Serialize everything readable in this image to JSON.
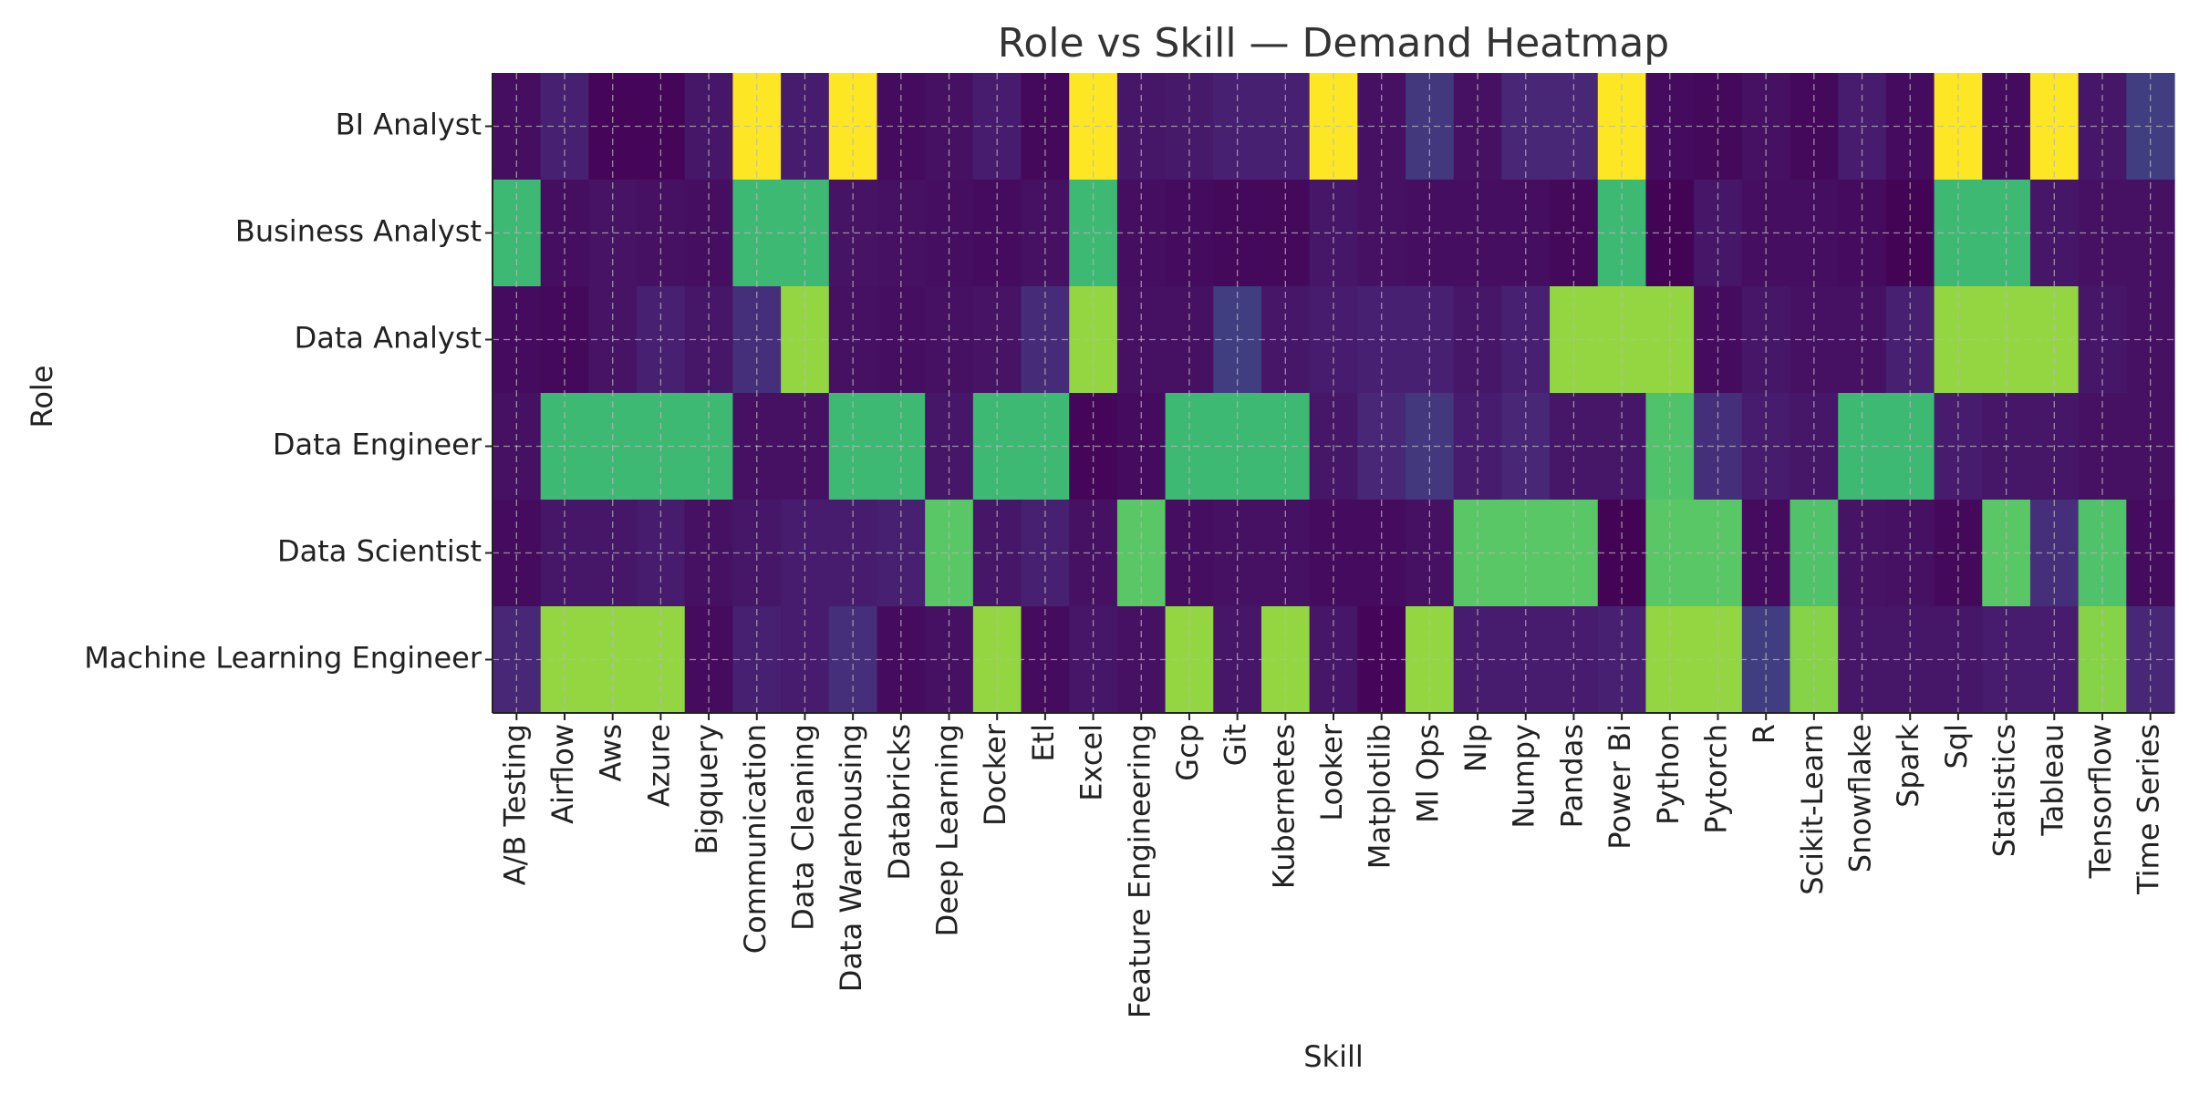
{
  "chart_data": {
    "type": "heatmap",
    "title": "Role vs Skill — Demand Heatmap",
    "xlabel": "Skill",
    "ylabel": "Role",
    "grid": true,
    "colormap": "viridis",
    "value_range": [
      0,
      1
    ],
    "rows": [
      "BI Analyst",
      "Business Analyst",
      "Data Analyst",
      "Data Engineer",
      "Data Scientist",
      "Machine Learning Engineer"
    ],
    "columns": [
      "A/B Testing",
      "Airflow",
      "Aws",
      "Azure",
      "Bigquery",
      "Communication",
      "Data Cleaning",
      "Data Warehousing",
      "Databricks",
      "Deep Learning",
      "Docker",
      "Etl",
      "Excel",
      "Feature Engineering",
      "Gcp",
      "Git",
      "Kubernetes",
      "Looker",
      "Matplotlib",
      "Ml Ops",
      "Nlp",
      "Numpy",
      "Pandas",
      "Power Bi",
      "Python",
      "Pytorch",
      "R",
      "Scikit-Learn",
      "Snowflake",
      "Spark",
      "Sql",
      "Statistics",
      "Tableau",
      "Tensorflow",
      "Time Series"
    ],
    "values": [
      [
        0.05,
        0.12,
        0.02,
        0.02,
        0.08,
        1.0,
        0.1,
        1.0,
        0.04,
        0.06,
        0.1,
        0.03,
        1.0,
        0.08,
        0.09,
        0.12,
        0.12,
        1.0,
        0.06,
        0.18,
        0.06,
        0.14,
        0.14,
        1.0,
        0.04,
        0.03,
        0.06,
        0.03,
        0.1,
        0.04,
        1.0,
        0.04,
        1.0,
        0.08,
        0.2
      ],
      [
        0.68,
        0.05,
        0.07,
        0.06,
        0.05,
        0.68,
        0.68,
        0.07,
        0.06,
        0.05,
        0.04,
        0.06,
        0.68,
        0.05,
        0.04,
        0.03,
        0.03,
        0.08,
        0.06,
        0.05,
        0.05,
        0.05,
        0.03,
        0.68,
        0.01,
        0.08,
        0.05,
        0.05,
        0.04,
        0.01,
        0.68,
        0.68,
        0.08,
        0.06,
        0.06
      ],
      [
        0.04,
        0.03,
        0.07,
        0.12,
        0.08,
        0.16,
        0.84,
        0.06,
        0.05,
        0.06,
        0.07,
        0.15,
        0.84,
        0.06,
        0.06,
        0.2,
        0.08,
        0.1,
        0.12,
        0.12,
        0.08,
        0.12,
        0.84,
        0.84,
        0.84,
        0.04,
        0.08,
        0.06,
        0.06,
        0.12,
        0.84,
        0.84,
        0.84,
        0.08,
        0.06
      ],
      [
        0.06,
        0.68,
        0.68,
        0.68,
        0.68,
        0.06,
        0.06,
        0.68,
        0.68,
        0.08,
        0.68,
        0.68,
        0.02,
        0.04,
        0.68,
        0.68,
        0.68,
        0.08,
        0.14,
        0.18,
        0.1,
        0.14,
        0.08,
        0.08,
        0.72,
        0.16,
        0.1,
        0.08,
        0.68,
        0.68,
        0.1,
        0.08,
        0.08,
        0.06,
        0.06
      ],
      [
        0.04,
        0.08,
        0.08,
        0.1,
        0.06,
        0.08,
        0.1,
        0.1,
        0.12,
        0.74,
        0.08,
        0.12,
        0.06,
        0.74,
        0.05,
        0.06,
        0.06,
        0.04,
        0.04,
        0.06,
        0.74,
        0.74,
        0.74,
        0.01,
        0.74,
        0.74,
        0.04,
        0.72,
        0.07,
        0.06,
        0.03,
        0.74,
        0.16,
        0.72,
        0.04
      ],
      [
        0.14,
        0.84,
        0.84,
        0.84,
        0.04,
        0.12,
        0.1,
        0.16,
        0.04,
        0.06,
        0.84,
        0.04,
        0.08,
        0.06,
        0.84,
        0.08,
        0.84,
        0.08,
        0.02,
        0.84,
        0.1,
        0.1,
        0.1,
        0.12,
        0.84,
        0.84,
        0.2,
        0.82,
        0.08,
        0.08,
        0.08,
        0.1,
        0.1,
        0.82,
        0.14
      ]
    ]
  }
}
